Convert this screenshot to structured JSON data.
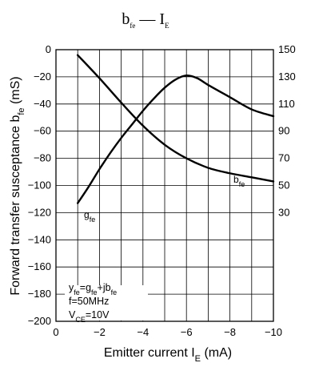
{
  "chart_data": {
    "type": "line",
    "title": {
      "main": "b",
      "main_sub": "fe",
      "sep": " — ",
      "tail": "I",
      "tail_sub": "E"
    },
    "xlabel": {
      "text": "Emitter current  I",
      "sub": "E",
      "unit": "  (mA)"
    },
    "ylabel": {
      "text": "Forward transfer susceptance  b",
      "sub": "fe",
      "unit": "  (mS)"
    },
    "xlim": [
      0,
      -10
    ],
    "x_ticks": [
      0,
      -2,
      -4,
      -6,
      -8,
      -10
    ],
    "x_tick_labels": [
      "0",
      "−2",
      "−4",
      "−6",
      "−8",
      "−10"
    ],
    "y_left": {
      "lim": [
        -200,
        0
      ],
      "ticks": [
        0,
        -20,
        -40,
        -60,
        -80,
        -100,
        -120,
        -140,
        -160,
        -180,
        -200
      ],
      "tick_labels": [
        "0",
        "−20",
        "−40",
        "−60",
        "−80",
        "−100",
        "−120",
        "−140",
        "−160",
        "−180",
        "−200"
      ]
    },
    "y_right": {
      "lim": [
        -50,
        150
      ],
      "ticks": [
        150,
        130,
        110,
        90,
        70,
        50,
        30
      ],
      "tick_labels": [
        "150",
        "130",
        "110",
        "90",
        "70",
        "50",
        "30"
      ]
    },
    "grid": true,
    "series": [
      {
        "name": "b",
        "name_sub": "fe",
        "axis": "left",
        "x": [
          -1,
          -2,
          -3,
          -4,
          -5,
          -6,
          -7,
          -8,
          -9,
          -10
        ],
        "y": [
          -4,
          -21,
          -39,
          -56,
          -70,
          -80,
          -87,
          -91,
          -94,
          -97
        ]
      },
      {
        "name": "g",
        "name_sub": "fe",
        "axis": "right",
        "x": [
          -1,
          -1.5,
          -2,
          -2.5,
          -3,
          -3.5,
          -4,
          -4.5,
          -5,
          -5.5,
          -6,
          -6.5,
          -7,
          -8,
          -9,
          -10
        ],
        "y": [
          37,
          49,
          62,
          74,
          85,
          95,
          105,
          114,
          122,
          128,
          131,
          129,
          124,
          115,
          106,
          101
        ]
      }
    ],
    "annotation": [
      {
        "pre": "y",
        "pre_sub": "fe",
        "a": "=g",
        "a_sub": "fe",
        "b": "+jb",
        "b_sub": "fe"
      },
      {
        "text": "f=50MHz"
      },
      {
        "pre": "V",
        "pre_sub": "CE",
        "a": "=10V"
      }
    ]
  }
}
